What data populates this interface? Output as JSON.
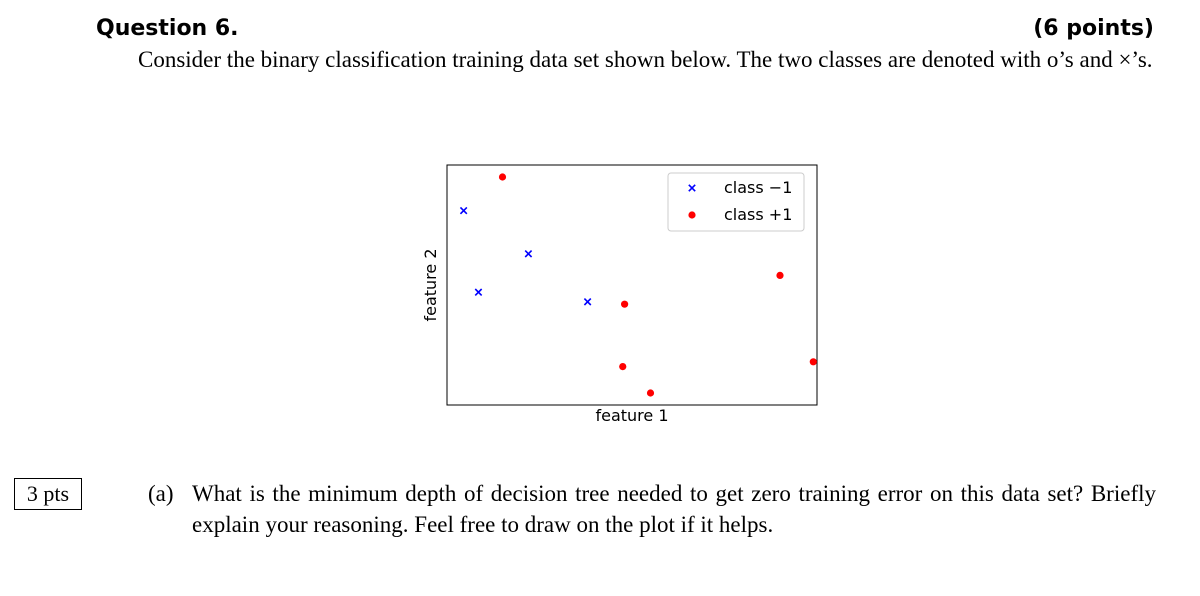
{
  "question": {
    "title": "Question 6.",
    "points": "(6 points)",
    "intro": "Consider the binary classification training data set shown below. The two classes are denoted with o’s and ×’s."
  },
  "chart_data": {
    "type": "scatter",
    "xlabel": "feature 1",
    "ylabel": "feature 2",
    "xlim": [
      0,
      10
    ],
    "ylim": [
      0,
      10
    ],
    "legend": {
      "placement": "top-right",
      "entries": [
        "class −1",
        "class +1"
      ]
    },
    "series": [
      {
        "name": "class −1",
        "marker": "x",
        "color": "#0000ff",
        "points": [
          [
            0.45,
            8.1
          ],
          [
            0.85,
            4.7
          ],
          [
            2.2,
            6.3
          ],
          [
            3.8,
            4.3
          ]
        ]
      },
      {
        "name": "class +1",
        "marker": "o",
        "color": "#ff0000",
        "points": [
          [
            1.5,
            9.5
          ],
          [
            4.8,
            4.2
          ],
          [
            4.75,
            1.6
          ],
          [
            5.5,
            0.5
          ],
          [
            9.0,
            5.4
          ],
          [
            9.9,
            1.8
          ]
        ]
      }
    ]
  },
  "part_a": {
    "points_label": "3 pts",
    "label": "(a)",
    "text": "What is the minimum depth of decision tree needed to get zero training error on this data set? Briefly explain your reasoning. Feel free to draw on the plot if it helps."
  }
}
